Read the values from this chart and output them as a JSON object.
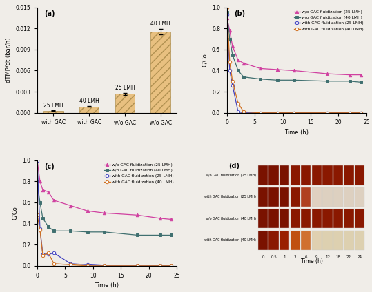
{
  "panel_a": {
    "categories": [
      "with GAC",
      "with GAC",
      "w/o GAC",
      "w/o GAC"
    ],
    "labels": [
      "25 LMH",
      "40 LMH",
      "25 LMH",
      "40 LMH"
    ],
    "values": [
      0.00028,
      0.0009,
      0.0027,
      0.01155
    ],
    "errors": [
      4e-05,
      7e-05,
      0.00013,
      0.00042
    ],
    "bar_color": "#e8c080",
    "hatch": "///",
    "ylabel": "dTMP/dt (bar/h)",
    "ylim": [
      0,
      0.015
    ],
    "yticks": [
      0,
      0.003,
      0.006,
      0.009,
      0.012,
      0.015
    ]
  },
  "panel_b": {
    "wo_gac_25": {
      "time": [
        0,
        0.5,
        1,
        2,
        3,
        6,
        9,
        12,
        18,
        22,
        24
      ],
      "CCo": [
        0.9,
        0.78,
        0.63,
        0.5,
        0.47,
        0.42,
        0.41,
        0.4,
        0.37,
        0.36,
        0.36
      ],
      "color": "#d040a0",
      "marker": "^",
      "label": "w/o GAC fluidization (25 LMH)"
    },
    "wo_gac_40": {
      "time": [
        0,
        0.5,
        1,
        2,
        3,
        6,
        9,
        12,
        18,
        22,
        24
      ],
      "CCo": [
        0.95,
        0.7,
        0.55,
        0.4,
        0.34,
        0.32,
        0.31,
        0.31,
        0.3,
        0.3,
        0.29
      ],
      "color": "#407070",
      "marker": "s",
      "label": "w/o GAC fluidization (40 LMH)"
    },
    "with_gac_25": {
      "time": [
        0,
        0.5,
        1,
        2,
        3,
        6,
        9,
        12,
        18,
        22,
        24
      ],
      "CCo": [
        0.93,
        0.4,
        0.26,
        0.01,
        0.0,
        0.0,
        0.0,
        0.0,
        0.0,
        0.0,
        0.0
      ],
      "color": "#4040c0",
      "marker": "o",
      "label": "with GAC fluidization (25 LMH)"
    },
    "with_gac_40": {
      "time": [
        0,
        0.5,
        1,
        2,
        3,
        6,
        9,
        12,
        18,
        22,
        24
      ],
      "CCo": [
        1.0,
        0.48,
        0.3,
        0.09,
        0.01,
        0.0,
        0.0,
        0.0,
        0.0,
        0.0,
        0.0
      ],
      "color": "#d07020",
      "marker": "o",
      "label": "with GAC fluidization (40 LMH)"
    },
    "ylabel": "C/Co",
    "xlabel": "Time (h)",
    "ylim": [
      0,
      1.0
    ],
    "xlim": [
      0,
      25
    ]
  },
  "panel_c": {
    "wo_gac_25": {
      "time": [
        0,
        0.5,
        1,
        2,
        3,
        6,
        9,
        12,
        18,
        22,
        24
      ],
      "CCo": [
        1.0,
        0.8,
        0.72,
        0.7,
        0.62,
        0.57,
        0.52,
        0.5,
        0.48,
        0.45,
        0.44
      ],
      "color": "#d040a0",
      "marker": "^",
      "label": "w/o GAC fluidization (25 LMH)"
    },
    "wo_gac_40": {
      "time": [
        0,
        0.5,
        1,
        2,
        3,
        6,
        9,
        12,
        18,
        22,
        24
      ],
      "CCo": [
        0.8,
        0.6,
        0.45,
        0.37,
        0.33,
        0.33,
        0.32,
        0.32,
        0.29,
        0.29,
        0.29
      ],
      "color": "#407070",
      "marker": "s",
      "label": "w/o GAC fluidization (40 LMH)"
    },
    "with_gac_25": {
      "time": [
        0,
        0.5,
        1,
        2,
        3,
        6,
        9,
        12,
        18,
        22,
        24
      ],
      "CCo": [
        1.0,
        0.35,
        0.11,
        0.11,
        0.12,
        0.02,
        0.01,
        0.0,
        0.0,
        0.0,
        0.0
      ],
      "color": "#4040c0",
      "marker": "o",
      "label": "with GAC fluidization (25 LMH)"
    },
    "with_gac_40": {
      "time": [
        0,
        0.5,
        1,
        2,
        3,
        6,
        9,
        12,
        18,
        22,
        24
      ],
      "CCo": [
        0.48,
        0.34,
        0.1,
        0.12,
        0.02,
        0.01,
        0.0,
        0.0,
        0.0,
        0.0,
        0.0
      ],
      "color": "#d07020",
      "marker": "o",
      "label": "with GAC fluidization (40 LMH)"
    },
    "ylabel": "C/Co",
    "xlabel": "Time (h)",
    "ylim": [
      0,
      1.0
    ],
    "xlim": [
      0,
      25
    ]
  },
  "panel_d": {
    "time_labels": [
      "0",
      "0.5",
      "1",
      "3",
      "6",
      "9",
      "12",
      "18",
      "22",
      "24"
    ],
    "row_labels": [
      "w/o GAC fluidization (25 LMH)",
      "with GAC fluidization (25 LMH)",
      "w/o GAC fluidization (40 LMH)",
      "with GAC fluidization (40 LMH)"
    ],
    "row_colors": [
      [
        "#8b1a00",
        "#8b1a00",
        "#8b1a00",
        "#8b1a00",
        "#8b1a00",
        "#8b1a00",
        "#8b1a00",
        "#8b1a00",
        "#8b1a00",
        "#8b1a00"
      ],
      [
        "#8b1a00",
        "#8b1a00",
        "#8b1a00",
        "#8b1a00",
        "#c05030",
        "#e8e8e8",
        "#e8e8e8",
        "#e8e8e8",
        "#e8e8e8",
        "#e8e8e8"
      ],
      [
        "#8b1a00",
        "#8b1a00",
        "#8b1a00",
        "#8b1a00",
        "#8b1a00",
        "#8b1a00",
        "#8b1a00",
        "#8b1a00",
        "#8b1a00",
        "#8b1a00"
      ],
      [
        "#8b1a00",
        "#8b1a00",
        "#8b1a00",
        "#c06020",
        "#d07030",
        "#e8e8e8",
        "#e8e8e8",
        "#e8e8e8",
        "#e8e8e8",
        "#e8e8e8"
      ]
    ],
    "xlabel": "Time (h)"
  },
  "bg_color": "#f0ede8"
}
